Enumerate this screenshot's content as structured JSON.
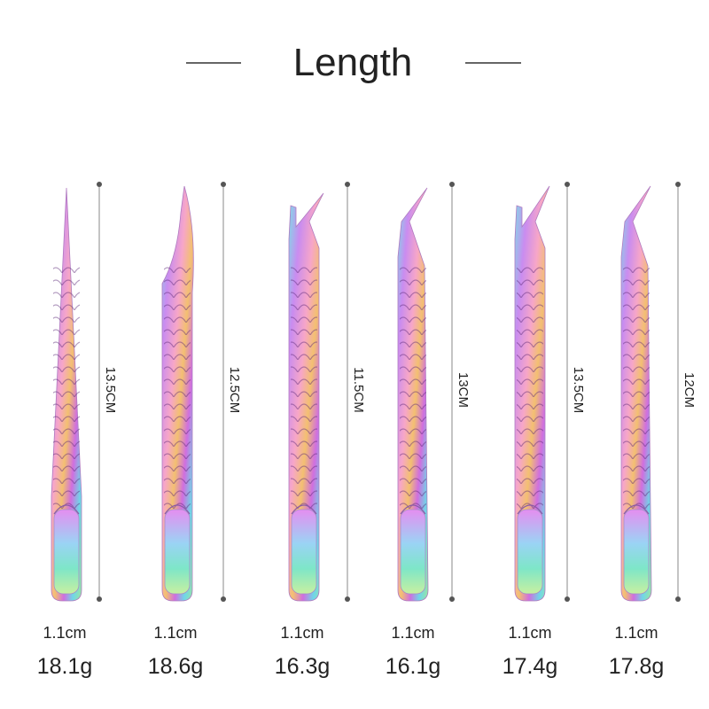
{
  "title": "Length",
  "items": [
    {
      "length": "13.5CM",
      "width": "1.1cm",
      "weight": "18.1g"
    },
    {
      "length": "12.5CM",
      "width": "1.1cm",
      "weight": "18.6g"
    },
    {
      "length": "11.5CM",
      "width": "1.1cm",
      "weight": "16.3g"
    },
    {
      "length": "13CM",
      "width": "1.1cm",
      "weight": "16.1g"
    },
    {
      "length": "13.5CM",
      "width": "1.1cm",
      "weight": "17.4g"
    },
    {
      "length": "12CM",
      "width": "1.1cm",
      "weight": "17.8g"
    }
  ]
}
